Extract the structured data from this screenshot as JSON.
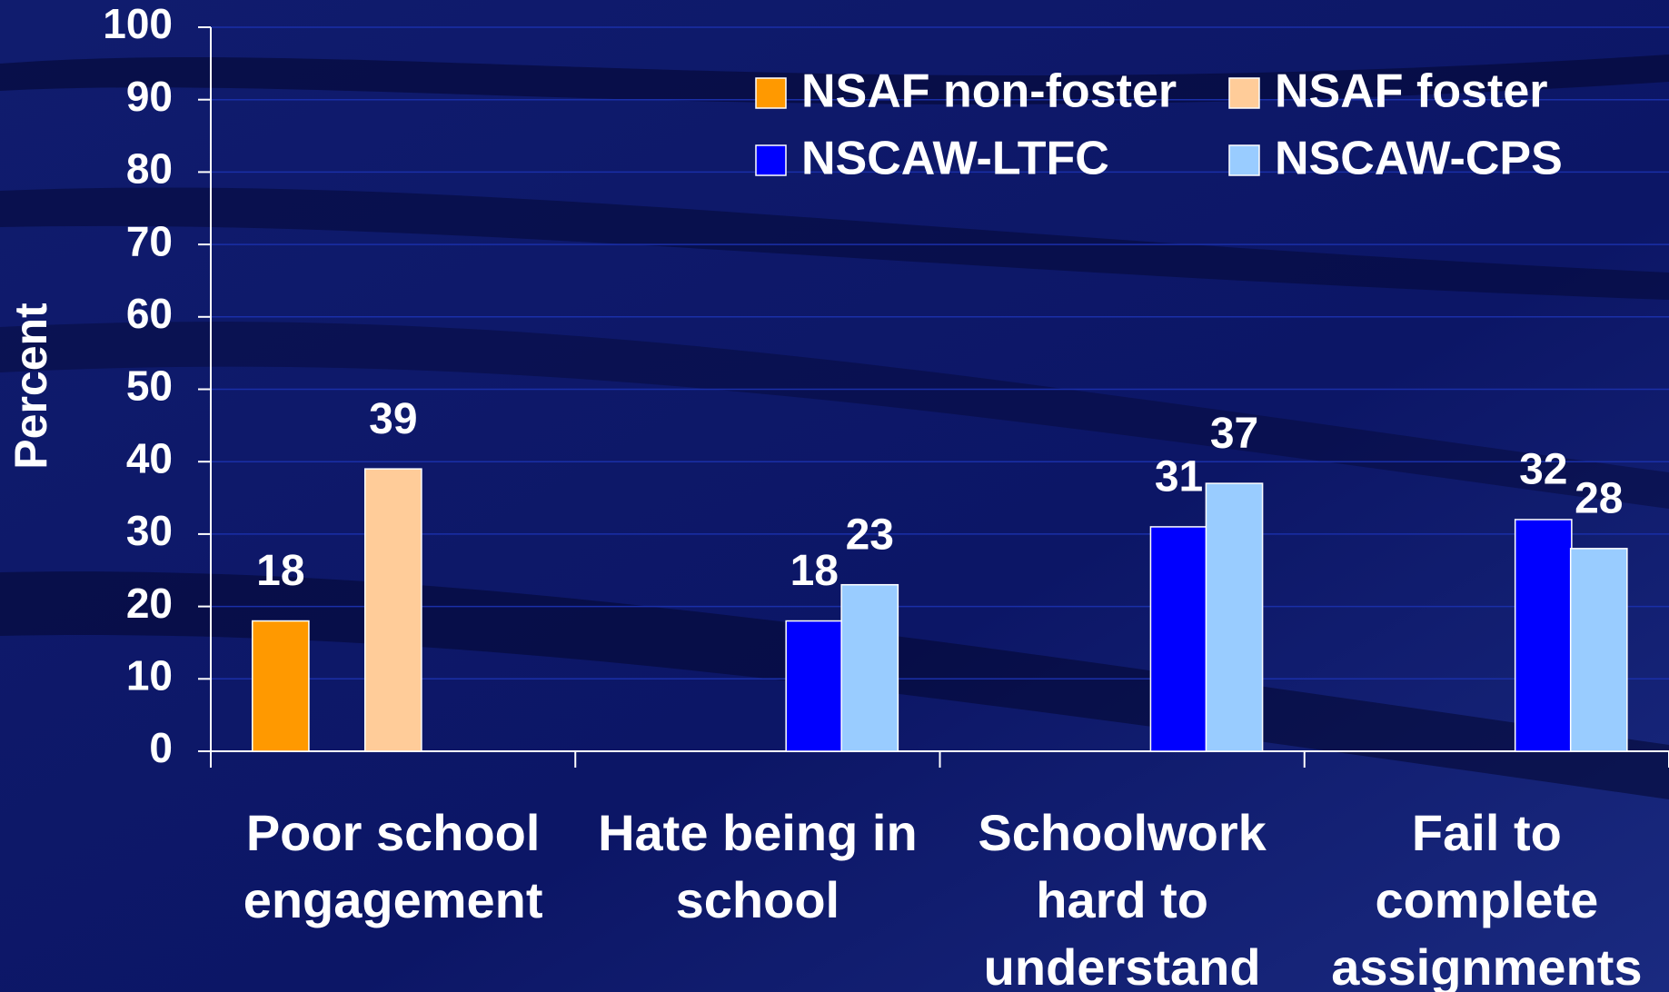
{
  "chart_data": {
    "type": "bar",
    "y_label": "Percent",
    "categories": [
      "Poor school engagement",
      "Hate being in school",
      "Schoolwork hard to understand",
      "Fail to complete assignments"
    ],
    "series": [
      {
        "name": "NSAF non-foster",
        "color": "#ff9900",
        "values": [
          18,
          null,
          null,
          null
        ]
      },
      {
        "name": "NSAF foster",
        "color": "#ffcc99",
        "values": [
          39,
          null,
          null,
          null
        ]
      },
      {
        "name": "NSCAW-LTFC",
        "color": "#0000ff",
        "values": [
          null,
          18,
          31,
          32
        ]
      },
      {
        "name": "NSCAW-CPS",
        "color": "#99ccff",
        "values": [
          null,
          23,
          37,
          28
        ]
      }
    ],
    "ylim": [
      0,
      100
    ],
    "yticks": [
      0,
      10,
      20,
      30,
      40,
      50,
      60,
      70,
      80,
      90,
      100
    ],
    "grid": true,
    "legend": "top-right"
  }
}
